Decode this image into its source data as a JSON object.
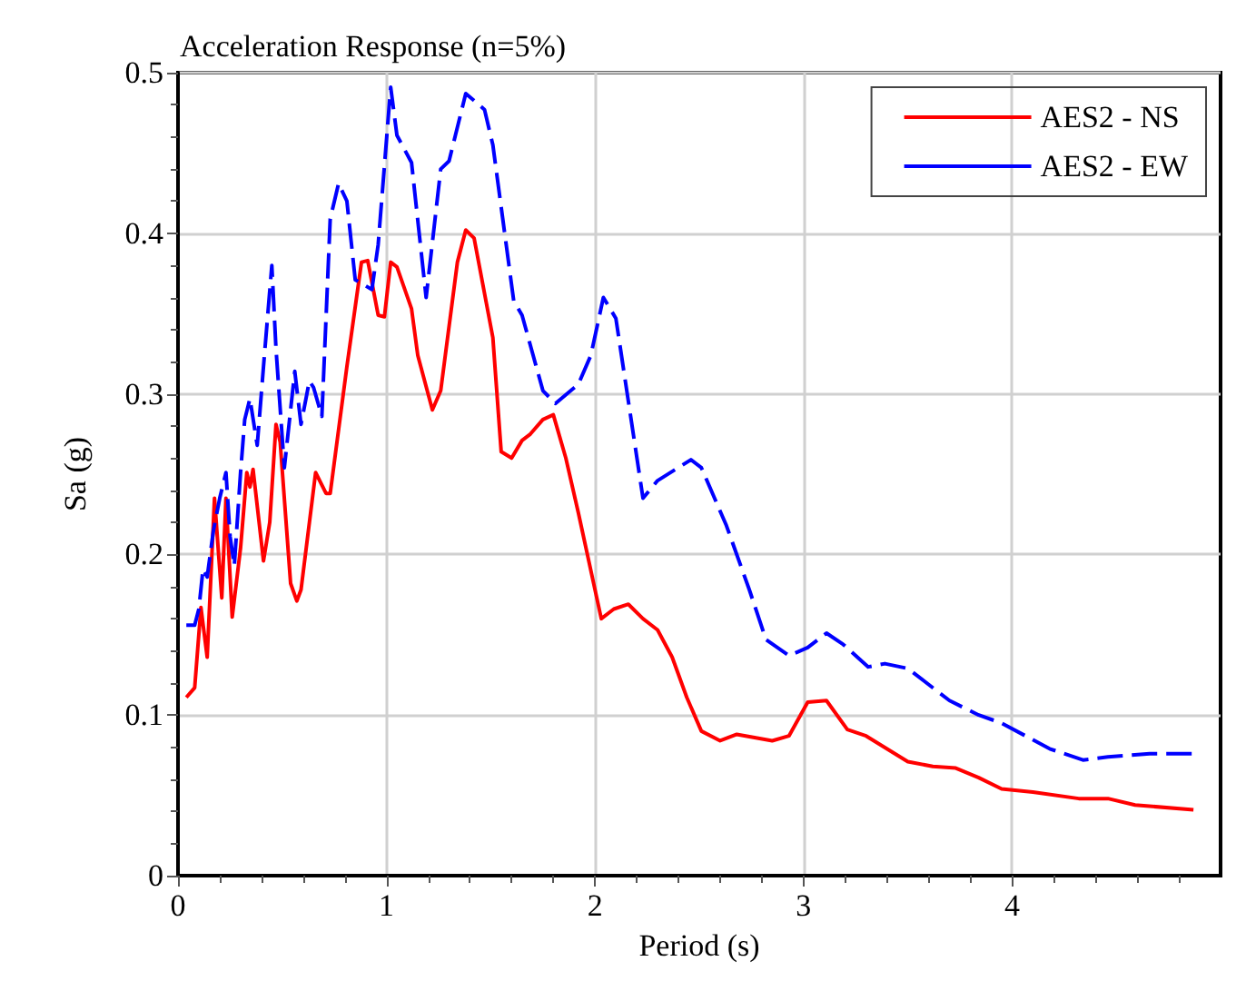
{
  "chart_data": {
    "type": "line",
    "title": "Acceleration Response (n=5%)",
    "xlabel": "Period (s)",
    "ylabel": "Sa (g)",
    "xlim": [
      0,
      5
    ],
    "xticks": [
      0,
      1,
      2,
      3,
      4
    ],
    "ylim": [
      0,
      0.5
    ],
    "yticks": [
      0,
      0.1,
      0.2,
      0.3,
      0.4,
      0.5
    ],
    "grid": true,
    "legend": "top right",
    "marker": "none",
    "series": [
      {
        "name": "AES2 - NS",
        "color": "#ff0000",
        "line_style": "solid",
        "x": [
          0.04,
          0.08,
          0.11,
          0.14,
          0.175,
          0.21,
          0.23,
          0.26,
          0.3,
          0.33,
          0.345,
          0.36,
          0.41,
          0.44,
          0.47,
          0.49,
          0.54,
          0.57,
          0.59,
          0.66,
          0.71,
          0.73,
          0.81,
          0.88,
          0.91,
          0.96,
          0.99,
          1.02,
          1.05,
          1.12,
          1.15,
          1.22,
          1.26,
          1.34,
          1.38,
          1.42,
          1.51,
          1.55,
          1.6,
          1.65,
          1.69,
          1.75,
          1.8,
          1.86,
          1.92,
          2.03,
          2.09,
          2.16,
          2.23,
          2.3,
          2.37,
          2.44,
          2.51,
          2.6,
          2.68,
          2.85,
          2.93,
          3.02,
          3.11,
          3.21,
          3.3,
          3.5,
          3.62,
          3.73,
          3.84,
          3.95,
          4.1,
          4.32,
          4.46,
          4.59,
          4.87
        ],
        "values": [
          0.111,
          0.117,
          0.167,
          0.136,
          0.235,
          0.173,
          0.235,
          0.161,
          0.204,
          0.251,
          0.242,
          0.253,
          0.196,
          0.22,
          0.281,
          0.27,
          0.182,
          0.171,
          0.178,
          0.251,
          0.238,
          0.238,
          0.317,
          0.382,
          0.383,
          0.349,
          0.348,
          0.382,
          0.379,
          0.353,
          0.324,
          0.29,
          0.302,
          0.382,
          0.402,
          0.397,
          0.335,
          0.264,
          0.26,
          0.271,
          0.275,
          0.284,
          0.287,
          0.26,
          0.226,
          0.16,
          0.166,
          0.169,
          0.16,
          0.153,
          0.136,
          0.111,
          0.09,
          0.084,
          0.088,
          0.084,
          0.087,
          0.108,
          0.109,
          0.091,
          0.087,
          0.071,
          0.068,
          0.067,
          0.061,
          0.054,
          0.052,
          0.048,
          0.048,
          0.044,
          0.041
        ]
      },
      {
        "name": "AES2 - EW",
        "color": "#0000ff",
        "line_style": "dashed",
        "x": [
          0.04,
          0.08,
          0.1,
          0.12,
          0.14,
          0.17,
          0.2,
          0.23,
          0.25,
          0.27,
          0.3,
          0.32,
          0.345,
          0.38,
          0.41,
          0.45,
          0.47,
          0.51,
          0.56,
          0.59,
          0.63,
          0.65,
          0.69,
          0.73,
          0.77,
          0.81,
          0.85,
          0.93,
          0.96,
          1.02,
          1.05,
          1.12,
          1.19,
          1.26,
          1.3,
          1.38,
          1.47,
          1.51,
          1.61,
          1.65,
          1.75,
          1.81,
          1.92,
          1.98,
          2.04,
          2.1,
          2.23,
          2.3,
          2.46,
          2.51,
          2.63,
          2.74,
          2.82,
          2.93,
          3.02,
          3.11,
          3.19,
          3.31,
          3.39,
          3.5,
          3.7,
          3.84,
          3.95,
          4.18,
          4.34,
          4.46,
          4.66,
          4.87
        ],
        "values": [
          0.156,
          0.156,
          0.166,
          0.191,
          0.186,
          0.215,
          0.235,
          0.251,
          0.211,
          0.193,
          0.251,
          0.284,
          0.297,
          0.268,
          0.317,
          0.38,
          0.328,
          0.254,
          0.314,
          0.281,
          0.308,
          0.304,
          0.286,
          0.409,
          0.431,
          0.42,
          0.371,
          0.365,
          0.393,
          0.491,
          0.461,
          0.444,
          0.36,
          0.44,
          0.445,
          0.487,
          0.477,
          0.455,
          0.358,
          0.349,
          0.302,
          0.294,
          0.306,
          0.324,
          0.36,
          0.347,
          0.235,
          0.246,
          0.259,
          0.254,
          0.218,
          0.178,
          0.147,
          0.137,
          0.142,
          0.151,
          0.144,
          0.13,
          0.132,
          0.129,
          0.109,
          0.1,
          0.095,
          0.079,
          0.072,
          0.074,
          0.076,
          0.076
        ]
      }
    ]
  }
}
